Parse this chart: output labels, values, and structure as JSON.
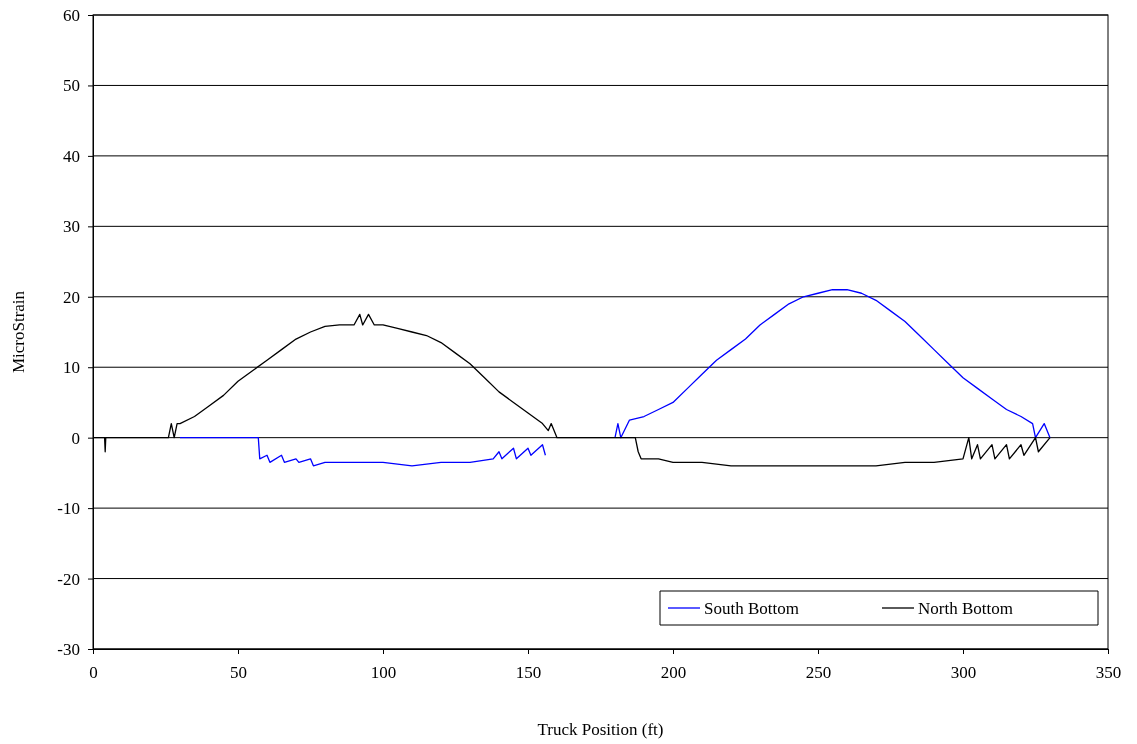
{
  "chart_data": {
    "type": "line",
    "xlabel": "Truck Position (ft)",
    "ylabel": "MicroStrain",
    "xlim": [
      0,
      350
    ],
    "xticks": [
      0,
      50,
      100,
      150,
      200,
      250,
      300,
      350
    ],
    "ylim": [
      -30,
      60
    ],
    "yticks": [
      -30,
      -20,
      -10,
      0,
      10,
      20,
      30,
      40,
      50,
      60
    ],
    "grid": "y",
    "legend": "bottom right",
    "marker": "none",
    "line_style": "solid",
    "series": [
      {
        "name": "South Bottom",
        "color": "#0000ff",
        "x": [
          30,
          57,
          57.5,
          60,
          61,
          65,
          66,
          70,
          71,
          75,
          76,
          80,
          90,
          100,
          110,
          120,
          130,
          138,
          140,
          141,
          145,
          146,
          150,
          151,
          155,
          156,
          157,
          180,
          181,
          182,
          185,
          190,
          195,
          200,
          205,
          210,
          215,
          220,
          225,
          230,
          235,
          240,
          245,
          250,
          255,
          260,
          265,
          270,
          275,
          280,
          285,
          290,
          295,
          300,
          305,
          310,
          315,
          320,
          324,
          325,
          328,
          330
        ],
        "values": [
          0,
          0,
          -3,
          -2.5,
          -3.5,
          -2.5,
          -3.5,
          -3,
          -3.5,
          -3,
          -4,
          -3.5,
          -3.5,
          -3.5,
          -4,
          -3.5,
          -3.5,
          -3,
          -2,
          -3,
          -1.5,
          -3,
          -1.5,
          -2.5,
          -1,
          -2.5,
          null,
          0,
          2,
          0,
          2.5,
          3,
          4,
          5,
          7,
          9,
          11,
          12.5,
          14,
          16,
          17.5,
          19,
          20,
          20.5,
          21,
          21,
          20.5,
          19.5,
          18,
          16.5,
          14.5,
          12.5,
          10.5,
          8.5,
          7,
          5.5,
          4,
          3,
          2,
          0,
          2,
          0
        ]
      },
      {
        "name": "North Bottom",
        "color": "#000000",
        "x": [
          0,
          4,
          4.2,
          4.4,
          26,
          27,
          28,
          29,
          30,
          35,
          40,
          45,
          50,
          55,
          60,
          65,
          70,
          75,
          80,
          85,
          90,
          92,
          93,
          95,
          97,
          100,
          105,
          110,
          115,
          120,
          125,
          130,
          135,
          140,
          145,
          150,
          155,
          157,
          158,
          160,
          187,
          188,
          189,
          190,
          195,
          200,
          210,
          220,
          230,
          240,
          250,
          260,
          270,
          280,
          290,
          300,
          302,
          303,
          305,
          306,
          310,
          311,
          315,
          316,
          320,
          321,
          325,
          326,
          330
        ],
        "values": [
          0,
          0,
          -2,
          0,
          0,
          2,
          0,
          2,
          2,
          3,
          4.5,
          6,
          8,
          9.5,
          11,
          12.5,
          14,
          15,
          15.8,
          16,
          16,
          17.5,
          16,
          17.5,
          16,
          16,
          15.5,
          15,
          14.5,
          13.5,
          12,
          10.5,
          8.5,
          6.5,
          5,
          3.5,
          2,
          1,
          2,
          0,
          0,
          -2,
          -3,
          -3,
          -3,
          -3.5,
          -3.5,
          -4,
          -4,
          -4,
          -4,
          -4,
          -4,
          -3.5,
          -3.5,
          -3,
          0,
          -3,
          -1,
          -3,
          -1,
          -3,
          -1,
          -3,
          -1,
          -2.5,
          0,
          -2,
          0
        ]
      }
    ]
  }
}
